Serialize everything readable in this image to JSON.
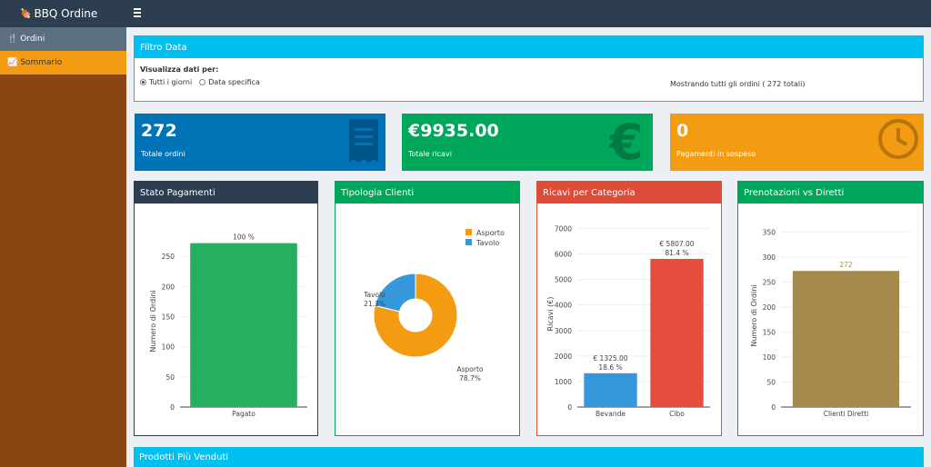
{
  "app": {
    "title": "BBQ Ordine"
  },
  "sidebar": {
    "items": [
      {
        "label": "Ordini"
      },
      {
        "label": "Sommario"
      }
    ]
  },
  "filter": {
    "title": "Filtro Data",
    "label": "Visualizza dati per:",
    "options": [
      {
        "label": "Tutti i giorni",
        "selected": true
      },
      {
        "label": "Data specifica",
        "selected": false
      }
    ],
    "status": "Mostrando tutti gli ordini ( 272 totali)"
  },
  "kpis": [
    {
      "value": "272",
      "label": "Totale ordini",
      "icon": "receipt-icon",
      "color": "#0073b7"
    },
    {
      "value": "€9935.00",
      "label": "Totale ricavi",
      "icon": "euro-icon",
      "color": "#00a65a"
    },
    {
      "value": "0",
      "label": "Pagamenti in sospeso",
      "icon": "clock-icon",
      "color": "#f39c12"
    }
  ],
  "charts": {
    "pagamenti": {
      "title": "Stato Pagamenti"
    },
    "clienti": {
      "title": "Tipologia Clienti"
    },
    "categoria": {
      "title": "Ricavi per Categoria"
    },
    "prenotazioni": {
      "title": "Prenotazioni vs Diretti"
    }
  },
  "products": {
    "title": "Prodotti Più Venduti"
  },
  "chart_data": [
    {
      "type": "bar",
      "title": "Stato Pagamenti",
      "categories": [
        "Pagato"
      ],
      "values": [
        272
      ],
      "data_labels": [
        "100 %"
      ],
      "ylabel": "Numero di Ordini",
      "ylim": [
        0,
        285
      ],
      "yticks": [
        0,
        50,
        100,
        150,
        200,
        250
      ],
      "color": "#27ae60"
    },
    {
      "type": "pie",
      "title": "Tipologia Clienti",
      "labels": [
        "Asporto",
        "Tavolo"
      ],
      "values": [
        78.7,
        21.3
      ],
      "slice_labels": [
        "Asporto\n78.7%",
        "Tavolo\n21.3%"
      ],
      "colors": [
        "#f39c12",
        "#3498db"
      ],
      "legend": "top-right"
    },
    {
      "type": "bar",
      "title": "Ricavi per Categoria",
      "categories": [
        "Bevande",
        "Cibo"
      ],
      "values": [
        1325,
        5807
      ],
      "data_labels": [
        "€ 1325.00\n18.6 %",
        "€ 5807.00\n81.4 %"
      ],
      "ylabel": "Ricavi (€)",
      "ylim": [
        0,
        7300
      ],
      "yticks": [
        0,
        1000,
        2000,
        3000,
        4000,
        5000,
        6000,
        7000
      ],
      "colors": [
        "#3498db",
        "#e74c3c"
      ]
    },
    {
      "type": "bar",
      "title": "Prenotazioni vs Diretti",
      "categories": [
        "Clienti Diretti"
      ],
      "values": [
        272
      ],
      "data_labels": [
        "272"
      ],
      "ylabel": "Numero di Ordini",
      "ylim": [
        0,
        365
      ],
      "yticks": [
        0,
        50,
        100,
        150,
        200,
        250,
        300,
        350
      ],
      "color": "#a68a4d"
    }
  ]
}
